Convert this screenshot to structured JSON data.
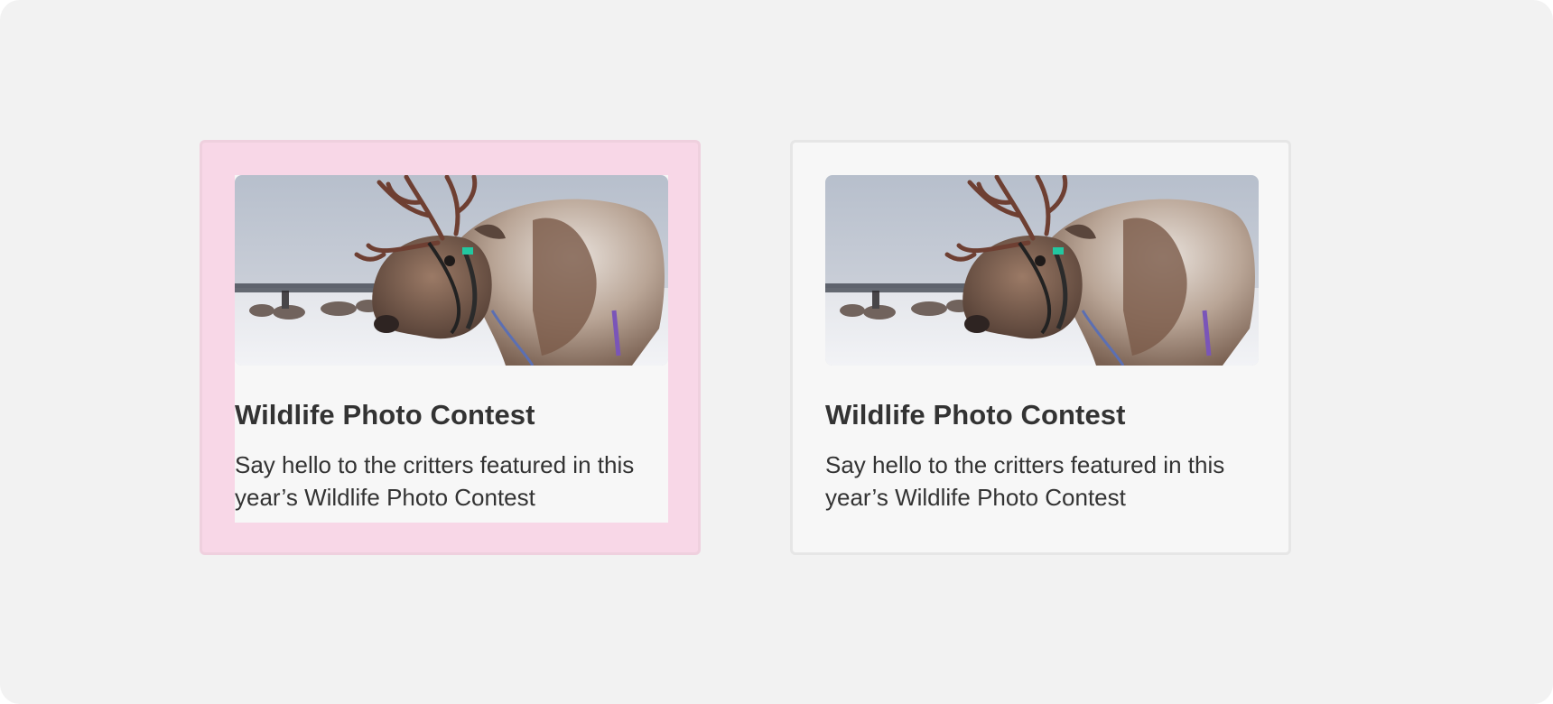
{
  "cards": [
    {
      "state": "highlighted",
      "image": "reindeer-photo",
      "title": "Wildlife Photo Contest",
      "description": "Say hello to the critters featured in this year’s Wildlife Photo Contest"
    },
    {
      "state": "default",
      "image": "reindeer-photo",
      "title": "Wildlife Photo Contest",
      "description": "Say hello to the critters featured in this year’s Wildlife Photo Contest"
    }
  ],
  "colors": {
    "canvas": "#f2f2f2",
    "highlight_fill": "#f8d7e7",
    "highlight_border": "#efd0de",
    "card_fill": "#f7f7f7",
    "card_border": "#e6e6e6",
    "text": "#333333"
  }
}
